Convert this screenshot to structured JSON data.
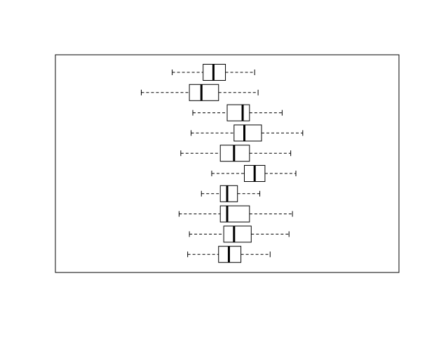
{
  "chart_data": {
    "type": "boxplot",
    "orientation": "horizontal",
    "title": "",
    "xlabel": "",
    "ylabel": "",
    "axes_shown": false,
    "xlim": [
      0,
      100
    ],
    "boxes": [
      {
        "min": 34.0,
        "q1": 43.0,
        "median": 46.0,
        "q3": 49.5,
        "max": 58.0
      },
      {
        "min": 25.0,
        "q1": 39.0,
        "median": 42.5,
        "q3": 47.5,
        "max": 59.0
      },
      {
        "min": 40.0,
        "q1": 50.0,
        "median": 54.5,
        "q3": 56.5,
        "max": 66.0
      },
      {
        "min": 39.5,
        "q1": 52.0,
        "median": 55.0,
        "q3": 60.0,
        "max": 72.0
      },
      {
        "min": 36.5,
        "q1": 48.0,
        "median": 52.0,
        "q3": 56.5,
        "max": 68.5
      },
      {
        "min": 45.5,
        "q1": 55.0,
        "median": 58.0,
        "q3": 61.0,
        "max": 70.0
      },
      {
        "min": 42.5,
        "q1": 48.0,
        "median": 50.0,
        "q3": 53.0,
        "max": 59.5
      },
      {
        "min": 36.0,
        "q1": 48.0,
        "median": 50.0,
        "q3": 56.5,
        "max": 69.0
      },
      {
        "min": 39.0,
        "q1": 49.0,
        "median": 52.0,
        "q3": 57.0,
        "max": 68.0
      },
      {
        "min": 38.5,
        "q1": 47.5,
        "median": 50.5,
        "q3": 54.0,
        "max": 62.5
      }
    ]
  }
}
